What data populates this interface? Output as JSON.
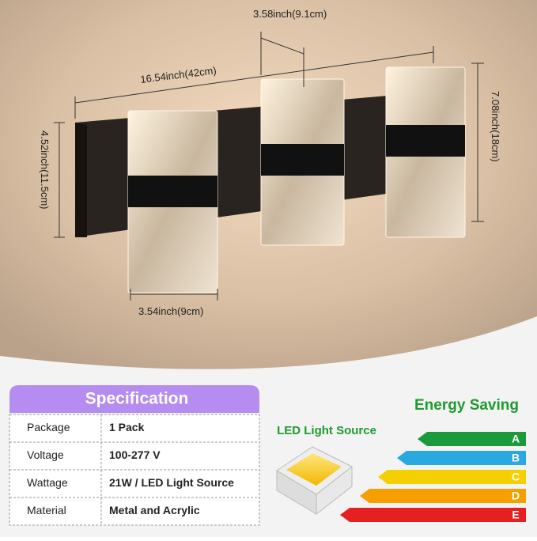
{
  "dimensions": {
    "total_width": "16.54inch(42cm)",
    "spacing": "3.58inch(9.1cm)",
    "height": "7.08inch(18cm)",
    "base_height": "4.52inch(11.5cm)",
    "panel_width": "3.54inch(9cm)"
  },
  "specification": {
    "title": "Specification",
    "rows": [
      [
        "Package",
        "1 Pack"
      ],
      [
        "Voltage",
        "100-277 V"
      ],
      [
        "Wattage",
        "21W / LED Light Source"
      ],
      [
        "Material",
        "Metal and Acrylic"
      ]
    ]
  },
  "led": {
    "label": "LED Light Source"
  },
  "energy": {
    "title": "Energy Saving",
    "grades": [
      "A",
      "B",
      "C",
      "D",
      "E"
    ]
  }
}
